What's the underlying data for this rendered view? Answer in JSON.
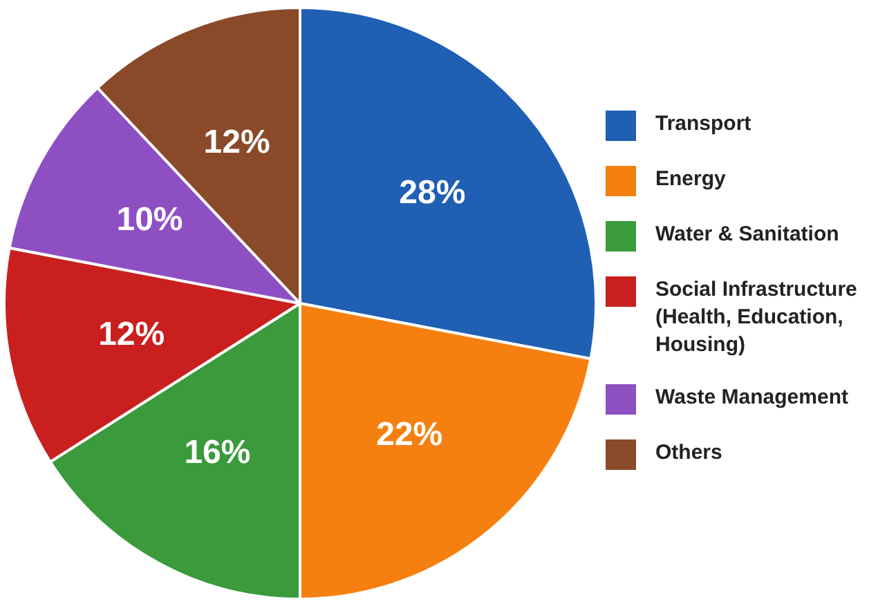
{
  "chart_data": {
    "type": "pie",
    "categories": [
      "Transport",
      "Energy",
      "Water & Sanitation",
      "Social Infrastructure (Health, Education, Housing)",
      "Waste Management",
      "Others"
    ],
    "values": [
      28,
      22,
      16,
      12,
      10,
      12
    ],
    "colors": [
      "#1f5fb4",
      "#f5800f",
      "#3a9a3c",
      "#c91f1f",
      "#8e4fc2",
      "#8a4a2a"
    ],
    "value_labels": [
      "28%",
      "22%",
      "16%",
      "12%",
      "10%",
      "12%"
    ],
    "legend": "right"
  }
}
